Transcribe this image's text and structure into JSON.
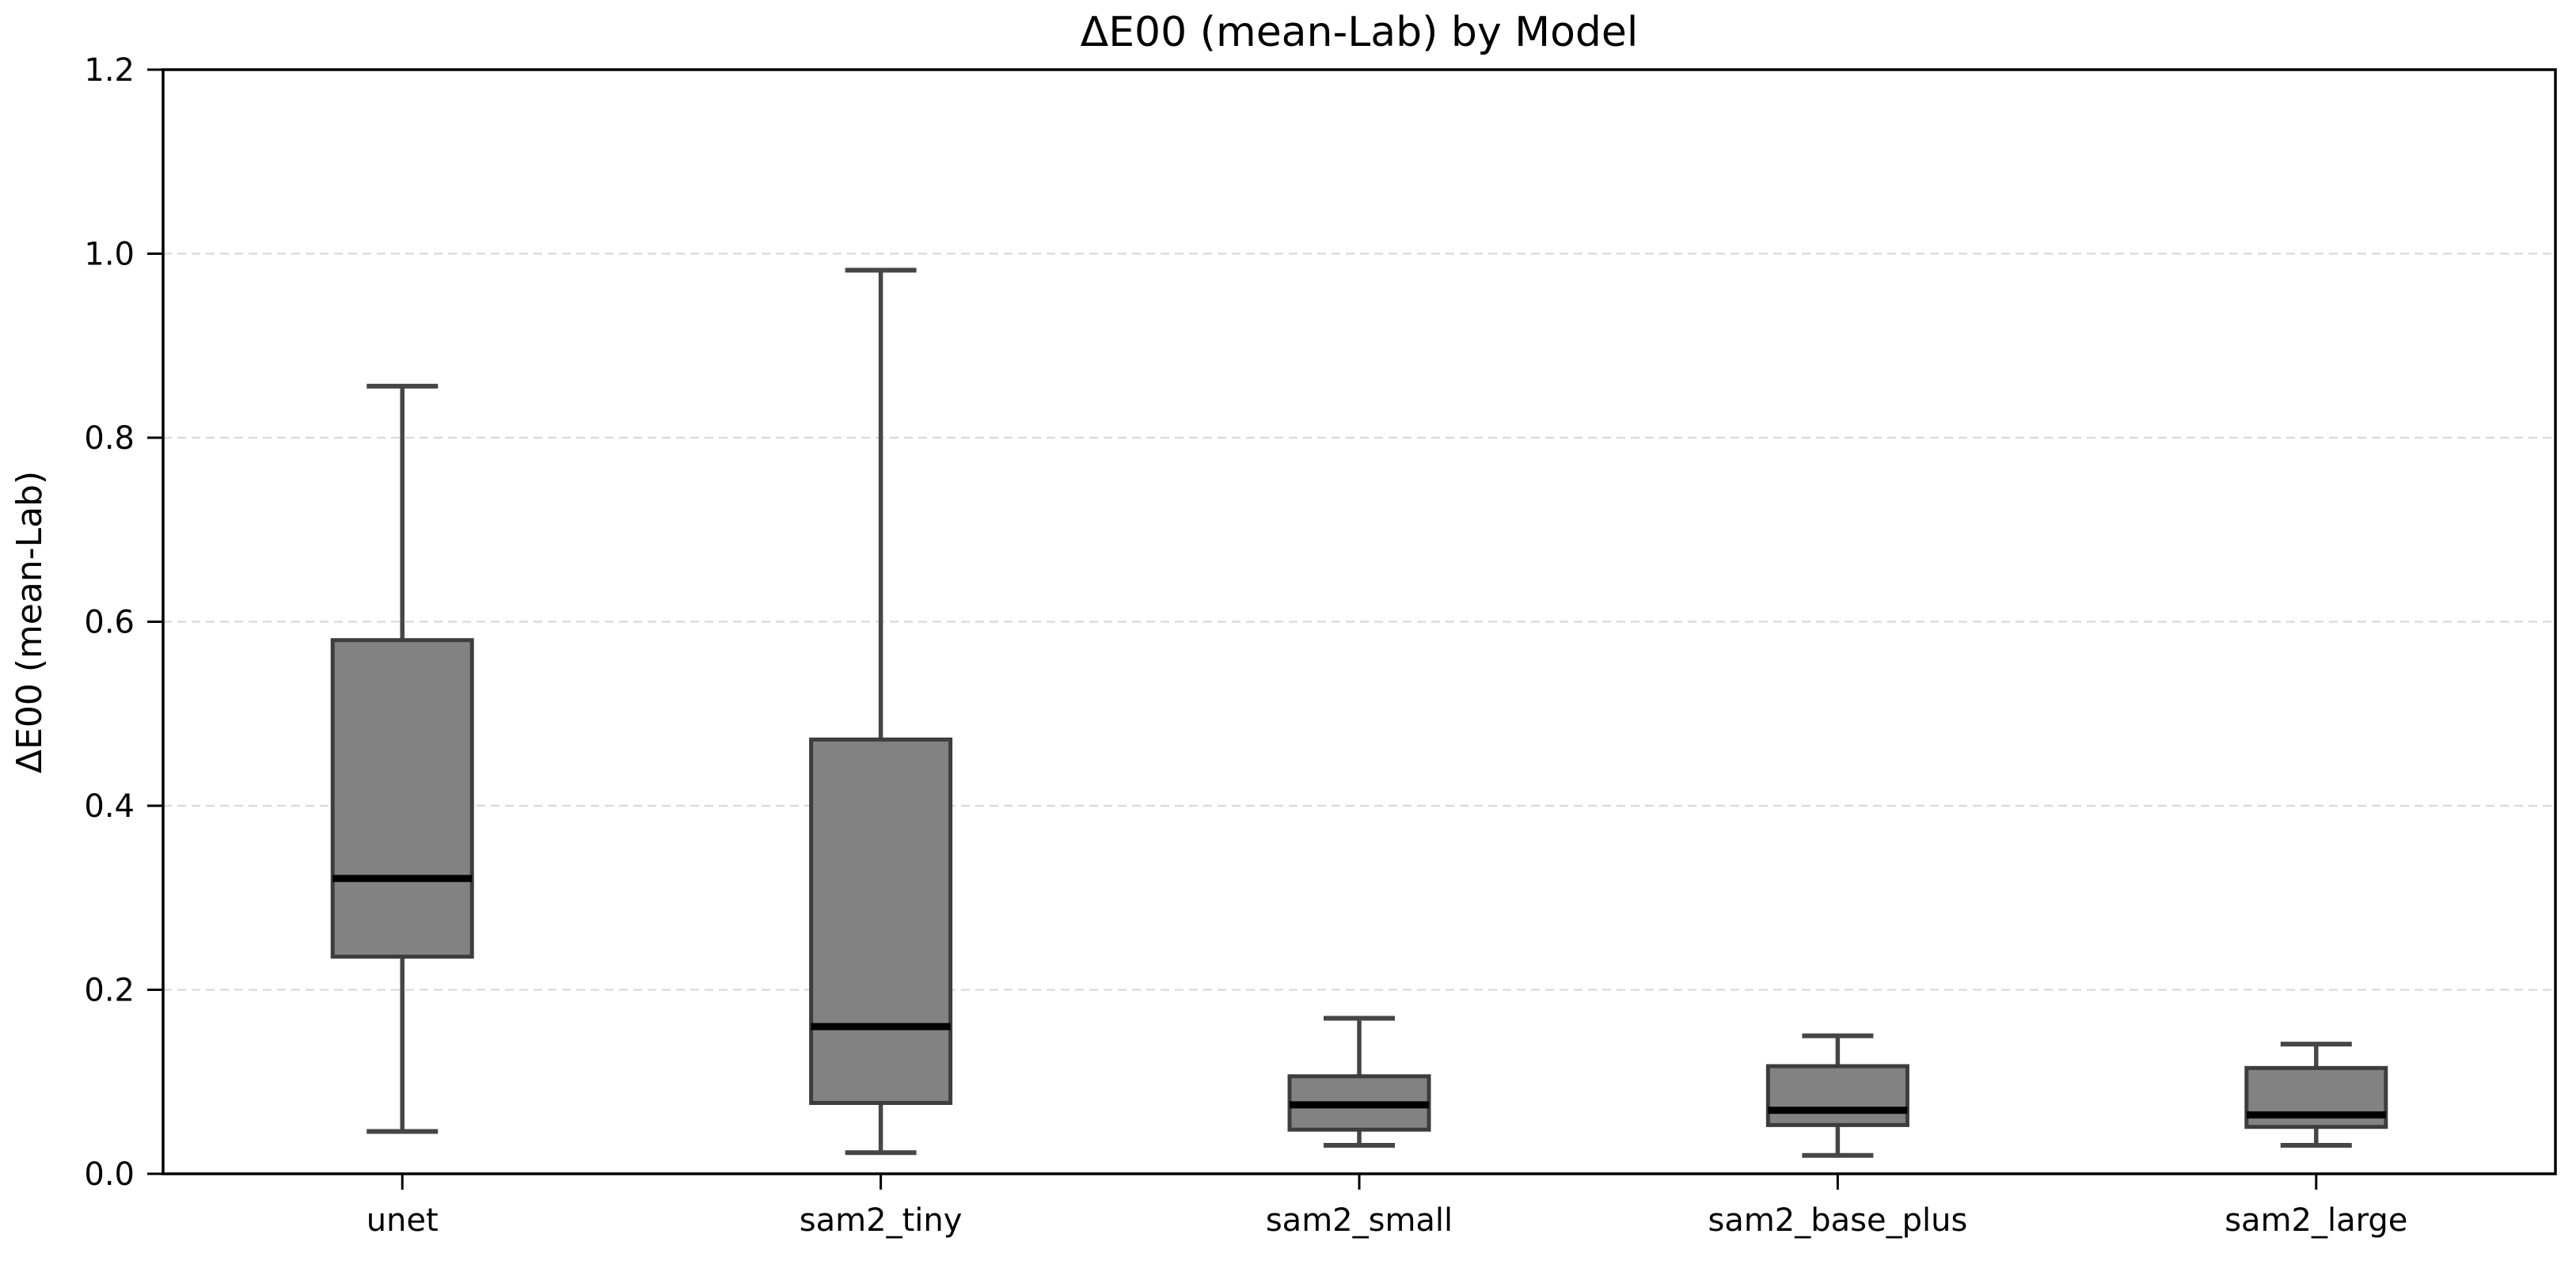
{
  "chart_data": {
    "type": "boxplot",
    "title": "ΔE00 (mean-Lab) by Model",
    "xlabel": "",
    "ylabel": "ΔE00 (mean-Lab)",
    "ylim": [
      0.0,
      1.2
    ],
    "y_ticks": [
      "0.0",
      "0.2",
      "0.4",
      "0.6",
      "0.8",
      "1.0",
      "1.2"
    ],
    "grid": "horizontal-dashed",
    "legend_position": "none",
    "categories": [
      "unet",
      "sam2_tiny",
      "sam2_small",
      "sam2_base_plus",
      "sam2_large"
    ],
    "series": [
      {
        "name": "unet",
        "whisker_low": 0.046,
        "q1": 0.236,
        "median": 0.321,
        "q3": 0.58,
        "whisker_high": 0.856
      },
      {
        "name": "sam2_tiny",
        "whisker_low": 0.023,
        "q1": 0.077,
        "median": 0.16,
        "q3": 0.472,
        "whisker_high": 0.982
      },
      {
        "name": "sam2_small",
        "whisker_low": 0.031,
        "q1": 0.048,
        "median": 0.075,
        "q3": 0.106,
        "whisker_high": 0.169
      },
      {
        "name": "sam2_base_plus",
        "whisker_low": 0.02,
        "q1": 0.053,
        "median": 0.069,
        "q3": 0.117,
        "whisker_high": 0.15
      },
      {
        "name": "sam2_large",
        "whisker_low": 0.031,
        "q1": 0.051,
        "median": 0.064,
        "q3": 0.115,
        "whisker_high": 0.141
      }
    ],
    "colors": {
      "box_fill": "#828282",
      "box_edge": "#3d3d3d",
      "median": "#000000",
      "whisker": "#464646",
      "grid": "#d9d9d9",
      "axis": "#000000",
      "background": "#ffffff"
    }
  }
}
